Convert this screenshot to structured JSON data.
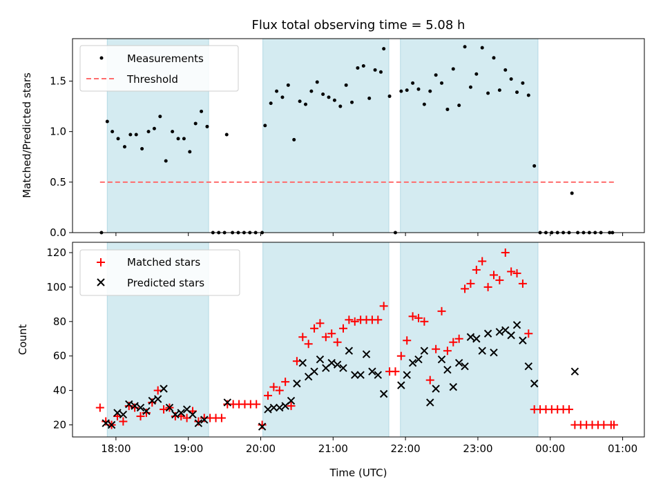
{
  "chart_data": [
    {
      "type": "scatter",
      "title": "Flux total observing time = 5.08 h",
      "ylabel": "Matched/Predicted stars",
      "xlabel": "",
      "xlim": [
        -0.6,
        7.3
      ],
      "ylim": [
        0,
        1.92
      ],
      "yticks": [
        0.0,
        0.5,
        1.0,
        1.5
      ],
      "ytick_labels": [
        "0.0",
        "0.5",
        "1.0",
        "1.5"
      ],
      "legend_position": "upper-left",
      "shaded_periods": [
        [
          -0.12,
          1.28
        ],
        [
          2.03,
          3.77
        ],
        [
          3.93,
          5.83
        ]
      ],
      "threshold": {
        "name": "Threshold",
        "value": 0.5,
        "x": [
          -0.22,
          6.88
        ],
        "color": "#ff6b6b"
      },
      "series": [
        {
          "name": "Measurements",
          "color": "#000000",
          "marker": "dot",
          "points": [
            [
              -0.2,
              0.0
            ],
            [
              -0.12,
              1.1
            ],
            [
              -0.05,
              1.0
            ],
            [
              0.03,
              0.93
            ],
            [
              0.12,
              0.85
            ],
            [
              0.2,
              0.97
            ],
            [
              0.28,
              0.97
            ],
            [
              0.36,
              0.83
            ],
            [
              0.45,
              1.0
            ],
            [
              0.53,
              1.03
            ],
            [
              0.61,
              1.15
            ],
            [
              0.69,
              0.71
            ],
            [
              0.78,
              1.0
            ],
            [
              0.86,
              0.93
            ],
            [
              0.94,
              0.93
            ],
            [
              1.02,
              0.8
            ],
            [
              1.1,
              1.08
            ],
            [
              1.18,
              1.2
            ],
            [
              1.26,
              1.05
            ],
            [
              1.34,
              0.0
            ],
            [
              1.42,
              0.0
            ],
            [
              1.5,
              0.0
            ],
            [
              1.53,
              0.97
            ],
            [
              1.61,
              0.0
            ],
            [
              1.69,
              0.0
            ],
            [
              1.77,
              0.0
            ],
            [
              1.85,
              0.0
            ],
            [
              1.93,
              0.0
            ],
            [
              2.02,
              0.0
            ],
            [
              2.06,
              1.06
            ],
            [
              2.14,
              1.28
            ],
            [
              2.22,
              1.4
            ],
            [
              2.3,
              1.34
            ],
            [
              2.38,
              1.46
            ],
            [
              2.46,
              0.92
            ],
            [
              2.54,
              1.3
            ],
            [
              2.62,
              1.27
            ],
            [
              2.7,
              1.4
            ],
            [
              2.78,
              1.49
            ],
            [
              2.86,
              1.37
            ],
            [
              2.94,
              1.34
            ],
            [
              3.02,
              1.31
            ],
            [
              3.1,
              1.25
            ],
            [
              3.18,
              1.46
            ],
            [
              3.26,
              1.29
            ],
            [
              3.34,
              1.63
            ],
            [
              3.42,
              1.65
            ],
            [
              3.5,
              1.33
            ],
            [
              3.58,
              1.61
            ],
            [
              3.66,
              1.59
            ],
            [
              3.7,
              1.82
            ],
            [
              3.78,
              1.35
            ],
            [
              3.86,
              0.0
            ],
            [
              3.94,
              1.4
            ],
            [
              4.02,
              1.41
            ],
            [
              4.1,
              1.48
            ],
            [
              4.18,
              1.42
            ],
            [
              4.26,
              1.27
            ],
            [
              4.34,
              1.4
            ],
            [
              4.42,
              1.56
            ],
            [
              4.5,
              1.48
            ],
            [
              4.58,
              1.22
            ],
            [
              4.66,
              1.62
            ],
            [
              4.74,
              1.26
            ],
            [
              4.82,
              1.84
            ],
            [
              4.9,
              1.44
            ],
            [
              4.98,
              1.57
            ],
            [
              5.06,
              1.83
            ],
            [
              5.14,
              1.38
            ],
            [
              5.22,
              1.73
            ],
            [
              5.3,
              1.41
            ],
            [
              5.38,
              1.61
            ],
            [
              5.46,
              1.52
            ],
            [
              5.54,
              1.39
            ],
            [
              5.62,
              1.48
            ],
            [
              5.7,
              1.36
            ],
            [
              5.78,
              0.66
            ],
            [
              5.86,
              0.0
            ],
            [
              5.94,
              0.0
            ],
            [
              6.02,
              0.0
            ],
            [
              6.1,
              0.0
            ],
            [
              6.18,
              0.0
            ],
            [
              6.26,
              0.0
            ],
            [
              6.3,
              0.39
            ],
            [
              6.38,
              0.0
            ],
            [
              6.46,
              0.0
            ],
            [
              6.54,
              0.0
            ],
            [
              6.62,
              0.0
            ],
            [
              6.7,
              0.0
            ],
            [
              6.82,
              0.0
            ],
            [
              6.86,
              0.0
            ]
          ]
        }
      ]
    },
    {
      "type": "scatter",
      "title": "",
      "ylabel": "Count",
      "xlabel": "Time (UTC)",
      "xlim": [
        -0.6,
        7.3
      ],
      "ylim": [
        13,
        126
      ],
      "yticks": [
        20,
        40,
        60,
        80,
        100,
        120
      ],
      "ytick_labels": [
        "20",
        "40",
        "60",
        "80",
        "100",
        "120"
      ],
      "xticks": [
        0,
        1,
        2,
        3,
        4,
        5,
        6,
        7
      ],
      "xtick_labels": [
        "18:00",
        "19:00",
        "20:00",
        "21:00",
        "22:00",
        "23:00",
        "00:00",
        "01:00"
      ],
      "legend_position": "upper-left",
      "shaded_periods": [
        [
          -0.12,
          1.28
        ],
        [
          2.03,
          3.77
        ],
        [
          3.93,
          5.83
        ]
      ],
      "series": [
        {
          "name": "Matched stars",
          "color": "#ff0000",
          "marker": "plus",
          "points": [
            [
              -0.22,
              30
            ],
            [
              -0.14,
              22
            ],
            [
              -0.06,
              20
            ],
            [
              0.02,
              25
            ],
            [
              0.1,
              22
            ],
            [
              0.18,
              31
            ],
            [
              0.26,
              30
            ],
            [
              0.34,
              25
            ],
            [
              0.42,
              27
            ],
            [
              0.5,
              33
            ],
            [
              0.58,
              40
            ],
            [
              0.66,
              29
            ],
            [
              0.74,
              30
            ],
            [
              0.82,
              25
            ],
            [
              0.9,
              25
            ],
            [
              0.98,
              24
            ],
            [
              1.06,
              28
            ],
            [
              1.14,
              22
            ],
            [
              1.22,
              24
            ],
            [
              1.3,
              24
            ],
            [
              1.38,
              24
            ],
            [
              1.46,
              24
            ],
            [
              1.54,
              32
            ],
            [
              1.62,
              32
            ],
            [
              1.7,
              32
            ],
            [
              1.78,
              32
            ],
            [
              1.86,
              32
            ],
            [
              1.94,
              32
            ],
            [
              2.02,
              20
            ],
            [
              2.1,
              37
            ],
            [
              2.18,
              42
            ],
            [
              2.26,
              40
            ],
            [
              2.34,
              45
            ],
            [
              2.42,
              31
            ],
            [
              2.5,
              57
            ],
            [
              2.58,
              71
            ],
            [
              2.66,
              67
            ],
            [
              2.74,
              76
            ],
            [
              2.82,
              79
            ],
            [
              2.9,
              71
            ],
            [
              2.98,
              73
            ],
            [
              3.06,
              68
            ],
            [
              3.14,
              76
            ],
            [
              3.22,
              81
            ],
            [
              3.3,
              80
            ],
            [
              3.38,
              81
            ],
            [
              3.46,
              81
            ],
            [
              3.54,
              81
            ],
            [
              3.62,
              81
            ],
            [
              3.7,
              89
            ],
            [
              3.78,
              51
            ],
            [
              3.86,
              51
            ],
            [
              3.94,
              60
            ],
            [
              4.02,
              69
            ],
            [
              4.1,
              83
            ],
            [
              4.18,
              82
            ],
            [
              4.26,
              80
            ],
            [
              4.34,
              46
            ],
            [
              4.42,
              64
            ],
            [
              4.5,
              86
            ],
            [
              4.58,
              63
            ],
            [
              4.66,
              68
            ],
            [
              4.74,
              70
            ],
            [
              4.82,
              99
            ],
            [
              4.9,
              102
            ],
            [
              4.98,
              110
            ],
            [
              5.06,
              115
            ],
            [
              5.14,
              100
            ],
            [
              5.22,
              107
            ],
            [
              5.3,
              104
            ],
            [
              5.38,
              120
            ],
            [
              5.46,
              109
            ],
            [
              5.54,
              108
            ],
            [
              5.62,
              102
            ],
            [
              5.7,
              73
            ],
            [
              5.78,
              29
            ],
            [
              5.86,
              29
            ],
            [
              5.94,
              29
            ],
            [
              6.02,
              29
            ],
            [
              6.1,
              29
            ],
            [
              6.18,
              29
            ],
            [
              6.26,
              29
            ],
            [
              6.34,
              20
            ],
            [
              6.42,
              20
            ],
            [
              6.5,
              20
            ],
            [
              6.58,
              20
            ],
            [
              6.66,
              20
            ],
            [
              6.74,
              20
            ],
            [
              6.84,
              20
            ],
            [
              6.88,
              20
            ]
          ]
        },
        {
          "name": "Predicted stars",
          "color": "#000000",
          "marker": "x",
          "points": [
            [
              -0.14,
              21
            ],
            [
              -0.06,
              20
            ],
            [
              0.02,
              27
            ],
            [
              0.1,
              26
            ],
            [
              0.18,
              32
            ],
            [
              0.26,
              31
            ],
            [
              0.34,
              30
            ],
            [
              0.42,
              28
            ],
            [
              0.5,
              34
            ],
            [
              0.58,
              35
            ],
            [
              0.66,
              41
            ],
            [
              0.74,
              30
            ],
            [
              0.82,
              26
            ],
            [
              0.9,
              27
            ],
            [
              0.98,
              29
            ],
            [
              1.06,
              26
            ],
            [
              1.14,
              21
            ],
            [
              1.22,
              23
            ],
            [
              1.54,
              33
            ],
            [
              2.02,
              19
            ],
            [
              2.1,
              29
            ],
            [
              2.18,
              30
            ],
            [
              2.26,
              30
            ],
            [
              2.34,
              31
            ],
            [
              2.42,
              34
            ],
            [
              2.5,
              44
            ],
            [
              2.58,
              56
            ],
            [
              2.66,
              48
            ],
            [
              2.74,
              51
            ],
            [
              2.82,
              58
            ],
            [
              2.9,
              53
            ],
            [
              2.98,
              56
            ],
            [
              3.06,
              55
            ],
            [
              3.14,
              53
            ],
            [
              3.22,
              63
            ],
            [
              3.3,
              49
            ],
            [
              3.38,
              49
            ],
            [
              3.46,
              61
            ],
            [
              3.54,
              51
            ],
            [
              3.62,
              49
            ],
            [
              3.7,
              38
            ],
            [
              3.94,
              43
            ],
            [
              4.02,
              49
            ],
            [
              4.1,
              56
            ],
            [
              4.18,
              58
            ],
            [
              4.26,
              63
            ],
            [
              4.34,
              33
            ],
            [
              4.42,
              41
            ],
            [
              4.5,
              58
            ],
            [
              4.58,
              52
            ],
            [
              4.66,
              42
            ],
            [
              4.74,
              56
            ],
            [
              4.82,
              54
            ],
            [
              4.9,
              71
            ],
            [
              4.98,
              70
            ],
            [
              5.06,
              63
            ],
            [
              5.14,
              73
            ],
            [
              5.22,
              62
            ],
            [
              5.3,
              74
            ],
            [
              5.38,
              75
            ],
            [
              5.46,
              72
            ],
            [
              5.54,
              78
            ],
            [
              5.62,
              69
            ],
            [
              5.7,
              54
            ],
            [
              5.78,
              44
            ],
            [
              6.34,
              51
            ]
          ]
        }
      ]
    }
  ]
}
